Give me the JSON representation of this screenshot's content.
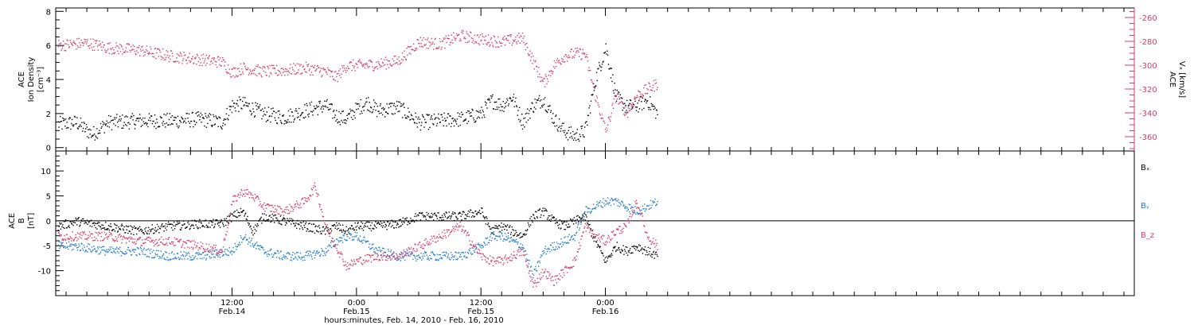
{
  "figure": {
    "xlabel": "hours:minutes, Feb. 14, 2010 - Feb. 16, 2010",
    "x_range_hours": [
      -17,
      87
    ],
    "x_major_ticks": [
      {
        "hour": 0,
        "time": "12:00",
        "date": "Feb.14"
      },
      {
        "hour": 12,
        "time": "0:00",
        "date": "Feb.15"
      },
      {
        "hour": 24,
        "time": "12:00",
        "date": "Feb.15"
      },
      {
        "hour": 36,
        "time": "0:00",
        "date": "Feb.16"
      }
    ],
    "x_minor_step_hours": 2
  },
  "chart_data": [
    {
      "type": "scatter",
      "panel": "top",
      "ylabel_left": [
        "ACE",
        "Ion Density",
        "[cm⁻³]"
      ],
      "ylabel_right": [
        "ACE",
        "Vₓ [km/s]"
      ],
      "ylim_left": [
        -0.2,
        8.2
      ],
      "ylim_right": [
        -372,
        -252
      ],
      "yticks_left": [
        0,
        2,
        4,
        6,
        8
      ],
      "yticks_right": [
        -260,
        -280,
        -300,
        -320,
        -340,
        -360
      ],
      "series": [
        {
          "axis": "left",
          "color": "#000000",
          "points": [
            [
              -16.8,
              1.4
            ],
            [
              -15,
              1.5
            ],
            [
              -13.5,
              0.8
            ],
            [
              -12,
              1.5
            ],
            [
              -9,
              1.6
            ],
            [
              -6,
              1.6
            ],
            [
              -3,
              1.7
            ],
            [
              -1,
              1.5
            ],
            [
              0,
              2.5
            ],
            [
              1,
              2.6
            ],
            [
              3,
              2.0
            ],
            [
              5,
              1.8
            ],
            [
              7,
              2.2
            ],
            [
              9,
              2.5
            ],
            [
              10,
              1.9
            ],
            [
              11,
              1.7
            ],
            [
              12,
              2.3
            ],
            [
              13,
              2.7
            ],
            [
              14,
              2.2
            ],
            [
              16,
              2.4
            ],
            [
              18,
              1.5
            ],
            [
              20,
              1.6
            ],
            [
              22,
              1.7
            ],
            [
              24,
              2.0
            ],
            [
              25,
              2.8
            ],
            [
              26,
              2.5
            ],
            [
              27,
              3.0
            ],
            [
              28,
              1.5
            ],
            [
              29,
              2.5
            ],
            [
              30,
              2.9
            ],
            [
              31,
              1.7
            ],
            [
              32,
              1.0
            ],
            [
              33,
              0.7
            ],
            [
              34,
              1.0
            ],
            [
              35,
              4.0
            ],
            [
              36,
              5.9
            ],
            [
              37,
              3.0
            ],
            [
              38,
              2.4
            ],
            [
              39,
              2.5
            ],
            [
              40,
              2.8
            ],
            [
              41,
              2.0
            ]
          ]
        },
        {
          "axis": "right",
          "color": "#d63c6a",
          "points": [
            [
              -16.8,
              -283
            ],
            [
              -14,
              -281
            ],
            [
              -12,
              -285
            ],
            [
              -9,
              -287
            ],
            [
              -6,
              -292
            ],
            [
              -3,
              -295
            ],
            [
              -1,
              -297
            ],
            [
              0,
              -306
            ],
            [
              1,
              -302
            ],
            [
              3,
              -305
            ],
            [
              5,
              -304
            ],
            [
              7,
              -302
            ],
            [
              9,
              -305
            ],
            [
              10,
              -310
            ],
            [
              11,
              -300
            ],
            [
              12,
              -300
            ],
            [
              14,
              -299
            ],
            [
              16,
              -296
            ],
            [
              18,
              -280
            ],
            [
              20,
              -282
            ],
            [
              22,
              -275
            ],
            [
              24,
              -278
            ],
            [
              26,
              -280
            ],
            [
              28,
              -277
            ],
            [
              29,
              -296
            ],
            [
              30,
              -315
            ],
            [
              31,
              -300
            ],
            [
              32,
              -292
            ],
            [
              33,
              -290
            ],
            [
              34,
              -290
            ],
            [
              35,
              -325
            ],
            [
              36,
              -355
            ],
            [
              37,
              -325
            ],
            [
              38,
              -340
            ],
            [
              39,
              -325
            ],
            [
              40,
              -320
            ],
            [
              41,
              -315
            ]
          ]
        }
      ]
    },
    {
      "type": "scatter",
      "panel": "bottom",
      "ylabel_left": [
        "ACE",
        "B",
        "[nT]"
      ],
      "ylim": [
        -15,
        14
      ],
      "yticks": [
        10,
        5,
        0,
        -5,
        -10
      ],
      "zero_line": true,
      "legend_placement": "right",
      "series": [
        {
          "name": "Bₓ",
          "color": "#000000",
          "points": [
            [
              -16.8,
              -1
            ],
            [
              -15,
              0
            ],
            [
              -12,
              -1
            ],
            [
              -9,
              -2
            ],
            [
              -6,
              -1
            ],
            [
              -3,
              -0.5
            ],
            [
              -1,
              -0.5
            ],
            [
              0,
              1
            ],
            [
              1,
              2
            ],
            [
              2,
              -2
            ],
            [
              3,
              1
            ],
            [
              5,
              0
            ],
            [
              7,
              -1
            ],
            [
              9,
              -2
            ],
            [
              10,
              -1
            ],
            [
              11,
              -2
            ],
            [
              12,
              -1
            ],
            [
              14,
              -1
            ],
            [
              16,
              -0.5
            ],
            [
              18,
              1
            ],
            [
              20,
              1
            ],
            [
              22,
              1
            ],
            [
              24,
              2
            ],
            [
              25,
              -2
            ],
            [
              26,
              -1
            ],
            [
              28,
              -3
            ],
            [
              29,
              1
            ],
            [
              30,
              2
            ],
            [
              31,
              0
            ],
            [
              32,
              -1
            ],
            [
              33,
              0
            ],
            [
              34,
              1
            ],
            [
              35,
              -4
            ],
            [
              36,
              -8
            ],
            [
              37,
              -5
            ],
            [
              38,
              -6
            ],
            [
              39,
              -5
            ],
            [
              40,
              -6
            ],
            [
              41,
              -7
            ]
          ]
        },
        {
          "name": "Bᵧ",
          "color": "#1e7bd0",
          "points": [
            [
              -16.8,
              -5
            ],
            [
              -15,
              -5
            ],
            [
              -12,
              -6
            ],
            [
              -9,
              -6
            ],
            [
              -6,
              -7
            ],
            [
              -3,
              -7
            ],
            [
              0,
              -6
            ],
            [
              1,
              -3
            ],
            [
              3,
              -6
            ],
            [
              5,
              -7
            ],
            [
              7,
              -7
            ],
            [
              9,
              -6
            ],
            [
              10,
              -4
            ],
            [
              11,
              -3
            ],
            [
              12,
              -3
            ],
            [
              14,
              -6
            ],
            [
              16,
              -7
            ],
            [
              18,
              -7
            ],
            [
              20,
              -7
            ],
            [
              22,
              -7
            ],
            [
              24,
              -5
            ],
            [
              25,
              -3
            ],
            [
              26,
              -3
            ],
            [
              28,
              -5
            ],
            [
              29,
              -11
            ],
            [
              30,
              -6
            ],
            [
              31,
              -5
            ],
            [
              32,
              -4
            ],
            [
              33,
              -3
            ],
            [
              34,
              2
            ],
            [
              35,
              3
            ],
            [
              36,
              4
            ],
            [
              37,
              4
            ],
            [
              38,
              3
            ],
            [
              39,
              2
            ],
            [
              40,
              3
            ],
            [
              41,
              4
            ]
          ]
        },
        {
          "name": "B_z",
          "color": "#d63c6a",
          "points": [
            [
              -16.8,
              -3
            ],
            [
              -15,
              -3
            ],
            [
              -12,
              -3
            ],
            [
              -9,
              -4
            ],
            [
              -6,
              -4
            ],
            [
              -3,
              -5
            ],
            [
              -1,
              -6
            ],
            [
              0,
              4
            ],
            [
              1,
              6
            ],
            [
              2,
              5
            ],
            [
              3,
              3
            ],
            [
              5,
              2
            ],
            [
              7,
              4
            ],
            [
              8,
              7
            ],
            [
              9,
              -1
            ],
            [
              10,
              -5
            ],
            [
              11,
              -9
            ],
            [
              12,
              -8
            ],
            [
              14,
              -7
            ],
            [
              16,
              -7
            ],
            [
              18,
              -5
            ],
            [
              20,
              -3
            ],
            [
              22,
              -1
            ],
            [
              24,
              -7
            ],
            [
              25,
              -8
            ],
            [
              26,
              -8
            ],
            [
              28,
              -6
            ],
            [
              29,
              -13
            ],
            [
              30,
              -10
            ],
            [
              31,
              -12
            ],
            [
              32,
              -10
            ],
            [
              33,
              -8
            ],
            [
              34,
              -1
            ],
            [
              35,
              -3
            ],
            [
              36,
              -4
            ],
            [
              37,
              -2
            ],
            [
              38,
              -1
            ],
            [
              39,
              4
            ],
            [
              40,
              -3
            ],
            [
              41,
              -5
            ]
          ]
        }
      ]
    }
  ]
}
